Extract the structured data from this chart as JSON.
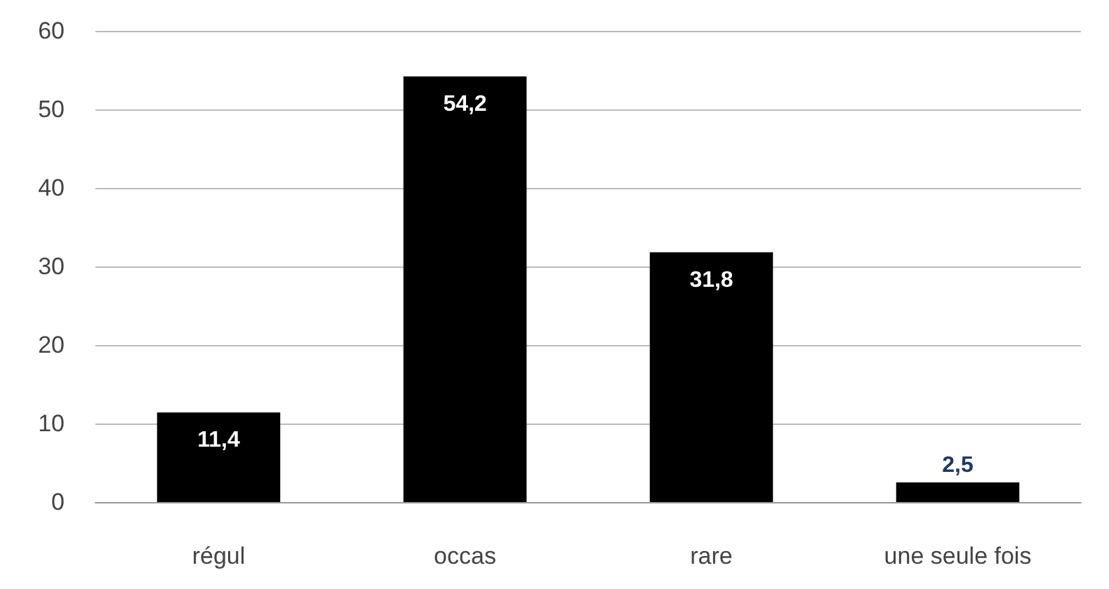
{
  "chart_data": {
    "type": "bar",
    "categories": [
      "régul",
      "occas",
      "rare",
      "une seule fois"
    ],
    "values": [
      11.4,
      54.2,
      31.8,
      2.5
    ],
    "color": "#000000",
    "value_labels": [
      "11,4",
      "54,2",
      "31,8",
      "2,5"
    ],
    "ylim": [
      0,
      60
    ],
    "yticks": [
      0,
      10,
      20,
      30,
      40,
      50,
      60
    ],
    "grid": "y"
  }
}
